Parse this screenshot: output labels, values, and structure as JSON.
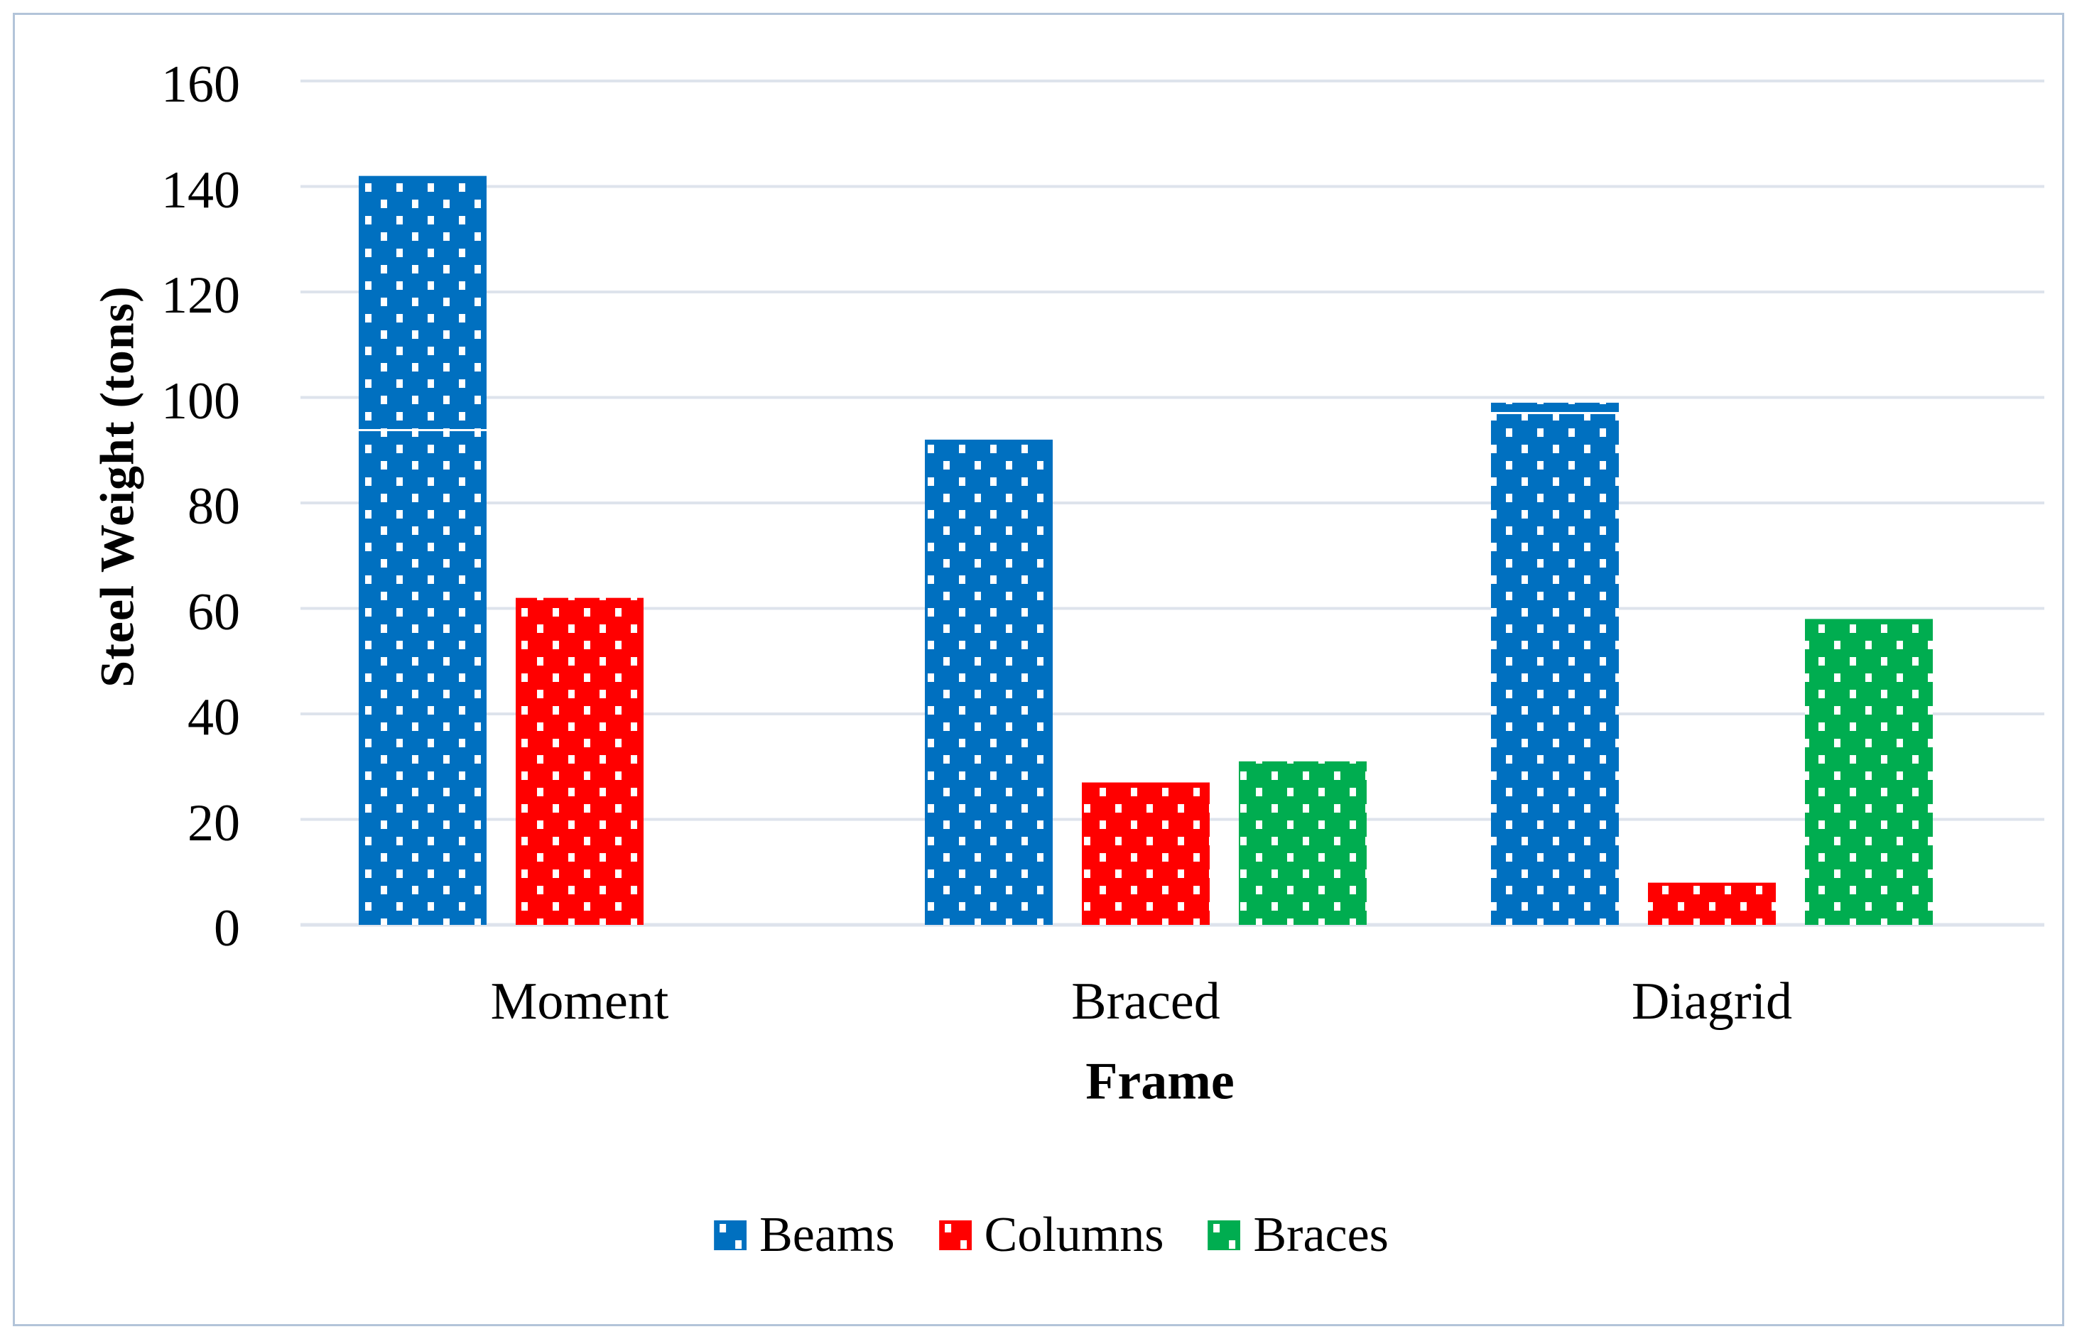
{
  "figure": {
    "background": "#ffffff",
    "border_color": "#b3c4d9"
  },
  "chart_data": {
    "type": "bar",
    "title": "",
    "xlabel": "Frame",
    "ylabel": "Steel Weight (tons)",
    "categories": [
      "Moment",
      "Braced",
      "Diagrid"
    ],
    "series": [
      {
        "name": "Beams",
        "color": "#0070c0",
        "values": [
          142,
          92,
          99
        ]
      },
      {
        "name": "Columns",
        "color": "#ff0000",
        "values": [
          62,
          27,
          8
        ]
      },
      {
        "name": "Braces",
        "color": "#00ad50",
        "values": [
          null,
          31,
          58
        ]
      }
    ],
    "ylim": [
      0,
      160
    ],
    "y_ticks": [
      0,
      20,
      40,
      60,
      80,
      100,
      120,
      140,
      160
    ],
    "grid": "horizontal",
    "gridline_color": "#dee3ec",
    "bar_pattern": "white-square-dots",
    "legend_position": "bottom-center",
    "legend_entries": [
      "Beams",
      "Columns",
      "Braces"
    ]
  }
}
